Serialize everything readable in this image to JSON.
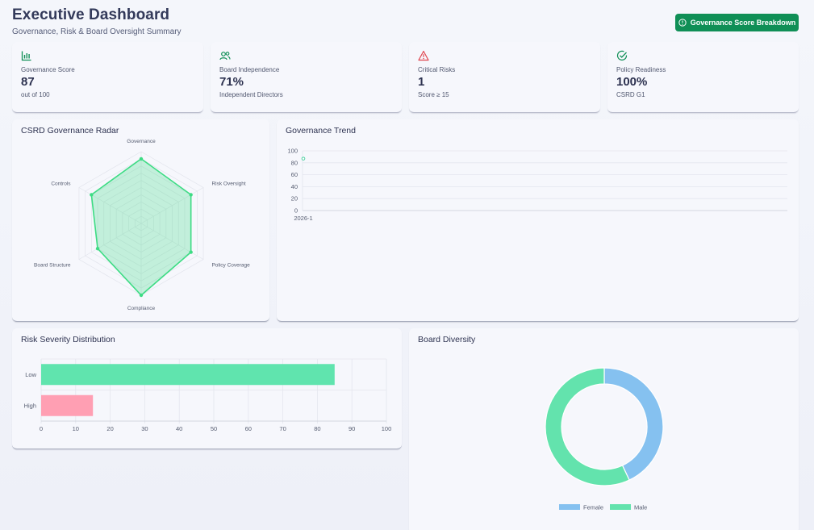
{
  "header": {
    "title": "Executive Dashboard",
    "subtitle": "Governance, Risk & Board Oversight Summary",
    "action_label": "Governance Score Breakdown"
  },
  "kpis": [
    {
      "icon": "bar-chart-icon",
      "label": "Governance Score",
      "value": "87",
      "sub": "out of 100",
      "color": "#0f8f56"
    },
    {
      "icon": "users-icon",
      "label": "Board Independence",
      "value": "71%",
      "sub": "Independent Directors",
      "color": "#0f8f56"
    },
    {
      "icon": "warning-icon",
      "label": "Critical Risks",
      "value": "1",
      "sub": "Score ≥ 15",
      "color": "#e0464f"
    },
    {
      "icon": "check-circle-icon",
      "label": "Policy Readiness",
      "value": "100%",
      "sub": "CSRD G1",
      "color": "#0f8f56"
    }
  ],
  "cards": {
    "radar_title": "CSRD Governance Radar",
    "trend_title": "Governance Trend",
    "risk_title": "Risk Severity Distribution",
    "diversity_title": "Board Diversity"
  },
  "colors": {
    "accent": "#0f8f56",
    "radar_line": "#3ddc84",
    "bar_low": "#60e4ae",
    "bar_high": "#ff9fb3",
    "female": "#85c1f0",
    "male": "#63e3ad"
  },
  "chart_data": [
    {
      "type": "radar",
      "title": "CSRD Governance Radar",
      "categories": [
        "Governance",
        "Risk Oversight",
        "Policy Coverage",
        "Compliance",
        "Board Structure",
        "Controls"
      ],
      "values": [
        90,
        80,
        80,
        100,
        70,
        80
      ],
      "rmax": 100
    },
    {
      "type": "line",
      "title": "Governance Trend",
      "x": [
        "2026-1"
      ],
      "values": [
        87
      ],
      "ylim": [
        0,
        100
      ],
      "yticks": [
        0,
        20,
        40,
        60,
        80,
        100
      ]
    },
    {
      "type": "bar",
      "orientation": "horizontal",
      "title": "Risk Severity Distribution",
      "categories": [
        "Low",
        "High"
      ],
      "values": [
        85,
        15
      ],
      "xlim": [
        0,
        100
      ],
      "xticks": [
        0,
        10,
        20,
        30,
        40,
        50,
        60,
        70,
        80,
        90,
        100
      ]
    },
    {
      "type": "pie",
      "title": "Board Diversity",
      "categories": [
        "Female",
        "Male"
      ],
      "values": [
        43,
        57
      ],
      "legend": "bottom"
    }
  ]
}
